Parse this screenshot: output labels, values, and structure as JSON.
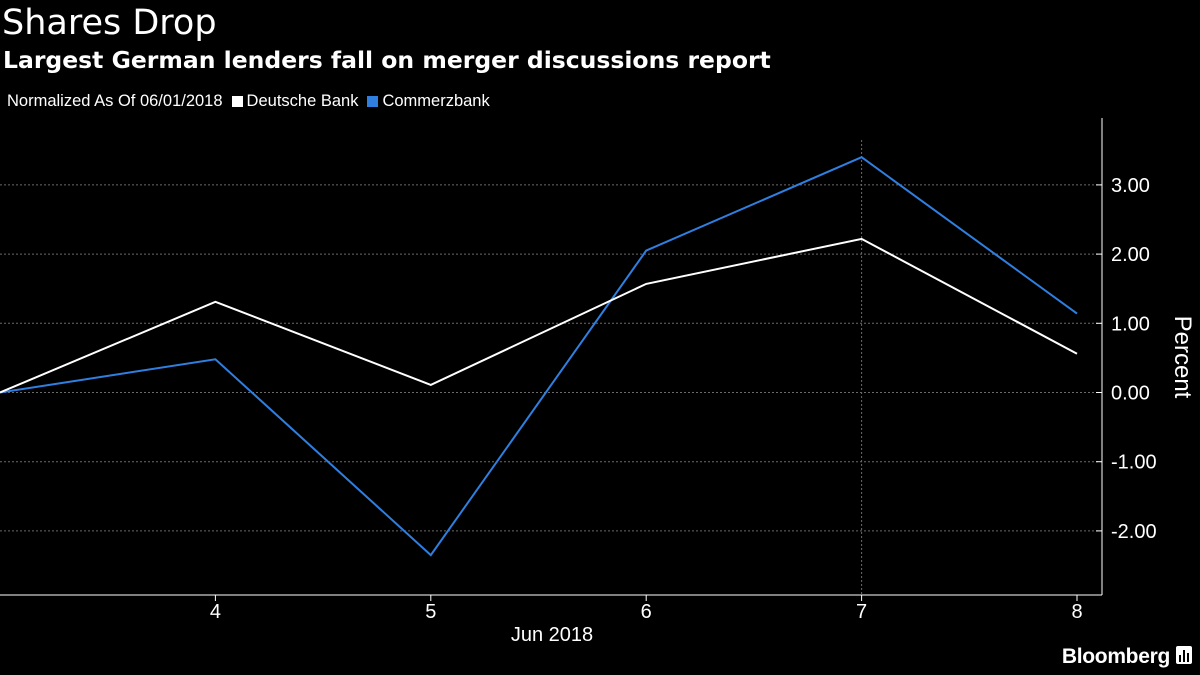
{
  "header": {
    "title": "Shares Drop",
    "subtitle": "Largest German lenders fall on merger discussions report"
  },
  "legend": {
    "note": "Normalized As Of 06/01/2018",
    "items": [
      {
        "label": "Deutsche Bank",
        "color": "#ffffff"
      },
      {
        "label": "Commerzbank",
        "color": "#2f7fe0"
      }
    ]
  },
  "brand": {
    "name": "Bloomberg",
    "icon": "bar-chart-icon"
  },
  "chart_data": {
    "type": "line",
    "title": "Shares Drop",
    "subtitle": "Largest German lenders fall on merger discussions report",
    "xlabel": "Jun 2018",
    "ylabel": "Percent",
    "x": [
      "2018-06-01",
      "2018-06-04",
      "2018-06-05",
      "2018-06-06",
      "2018-06-07",
      "2018-06-08"
    ],
    "x_tick_labels": [
      "4",
      "5",
      "6",
      "7",
      "8"
    ],
    "y_ticks": [
      -2.0,
      -1.0,
      0.0,
      1.0,
      2.0,
      3.0
    ],
    "y_tick_labels": [
      "-2.00",
      "-1.00",
      "0.00",
      "1.00",
      "2.00",
      "3.00"
    ],
    "ylim": [
      -2.9,
      3.95
    ],
    "grid": true,
    "y_axis_side": "right",
    "legend_position": "top-left",
    "series": [
      {
        "name": "Deutsche Bank",
        "color": "#ffffff",
        "values": [
          0.0,
          1.31,
          0.11,
          1.57,
          2.22,
          0.56
        ]
      },
      {
        "name": "Commerzbank",
        "color": "#2f7fe0",
        "values": [
          0.0,
          0.48,
          -2.35,
          2.05,
          3.4,
          1.14
        ]
      }
    ]
  }
}
